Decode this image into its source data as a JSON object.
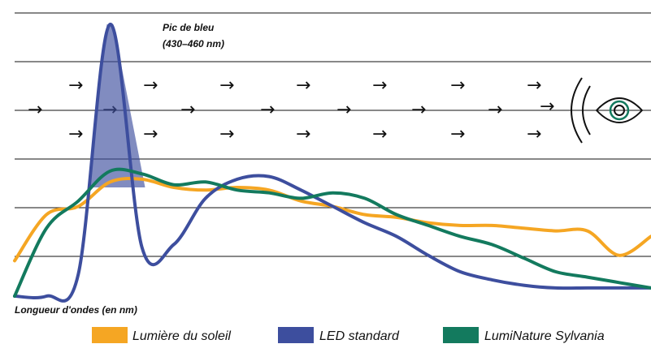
{
  "chart_data": {
    "type": "line",
    "title": "",
    "xlabel": "Longueur d'ondes (en nm)",
    "ylabel": "",
    "grid": true,
    "legend_position": "bottom",
    "x": [
      380,
      400,
      420,
      440,
      460,
      480,
      500,
      520,
      540,
      560,
      580,
      600,
      620,
      640,
      660,
      680,
      700,
      720,
      740,
      760,
      780
    ],
    "ylim": [
      0,
      100
    ],
    "annotation": {
      "line1": "Pic de bleu",
      "line2": "(430–460 nm)",
      "range": [
        430,
        460
      ]
    },
    "series": [
      {
        "name": "Lumière du soleil",
        "color": "#F5A623",
        "values": [
          13,
          30,
          33,
          42,
          43,
          40,
          39,
          40,
          39,
          35,
          33,
          30,
          29,
          27,
          26,
          26,
          25,
          24,
          24,
          15,
          22
        ]
      },
      {
        "name": "LED standard",
        "color": "#3D4E9E",
        "values": [
          0,
          0,
          8,
          100,
          18,
          19,
          36,
          43,
          44,
          39,
          33,
          27,
          22,
          15,
          9,
          6,
          4,
          3,
          3,
          3,
          3
        ]
      },
      {
        "name": "LumiNature Sylvania",
        "color": "#137A5E",
        "values": [
          0,
          25,
          35,
          46,
          45,
          41,
          42,
          39,
          38,
          36,
          38,
          36,
          30,
          26,
          22,
          19,
          14,
          9,
          7,
          5,
          3
        ]
      }
    ]
  }
}
